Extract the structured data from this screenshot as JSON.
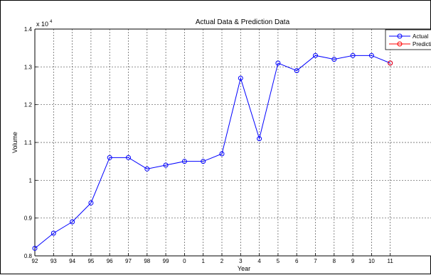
{
  "chart_data": {
    "type": "line",
    "title": "Actual Data & Prediction Data",
    "xlabel": "Year",
    "ylabel": "Volume",
    "y_multiplier_label": "x 10",
    "y_multiplier_exponent": "4",
    "x_tick_labels": [
      "92",
      "93",
      "94",
      "95",
      "96",
      "97",
      "98",
      "99",
      "0",
      "1",
      "2",
      "3",
      "4",
      "5",
      "6",
      "7",
      "8",
      "9",
      "10",
      "11"
    ],
    "y_ticks": [
      0.8,
      0.9,
      1.0,
      1.1,
      1.2,
      1.3,
      1.4
    ],
    "y_tick_labels": [
      "0.8",
      "0.9",
      "1",
      "1.1",
      "1.2",
      "1.3",
      "1.4"
    ],
    "ylim": [
      0.8,
      1.4
    ],
    "grid": true,
    "legend_position": "top-right",
    "series": [
      {
        "name": "Actual",
        "color": "#0000ff",
        "marker": "circle",
        "values": [
          0.82,
          0.86,
          0.89,
          0.94,
          1.06,
          1.06,
          1.03,
          1.04,
          1.05,
          1.05,
          1.07,
          1.27,
          1.11,
          1.31,
          1.29,
          1.33,
          1.32,
          1.33,
          1.33,
          1.31
        ]
      },
      {
        "name": "Prediction",
        "color": "#ff0000",
        "marker": "circle",
        "values": [
          null,
          null,
          null,
          null,
          null,
          null,
          null,
          null,
          null,
          null,
          null,
          null,
          null,
          null,
          null,
          null,
          null,
          null,
          null,
          1.31
        ]
      }
    ]
  }
}
